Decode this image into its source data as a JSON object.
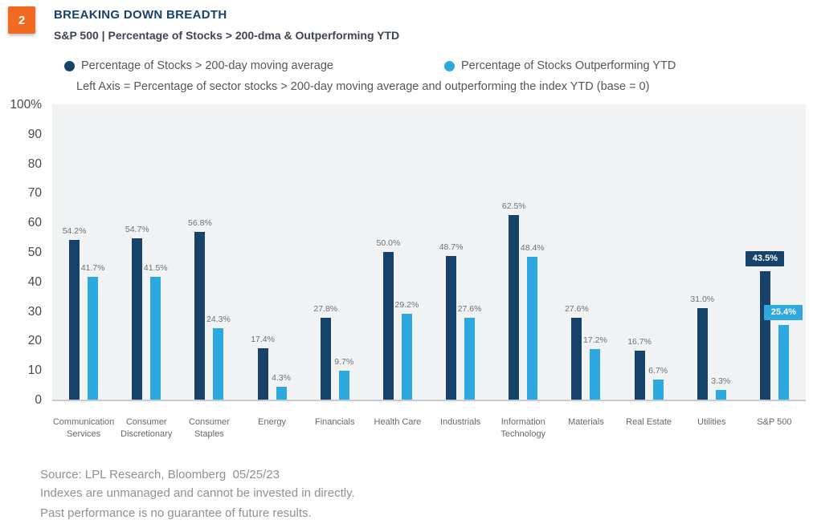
{
  "page": {
    "badge": "2",
    "title": "BREAKING DOWN BREADTH",
    "subtitle": "S&P 500 | Percentage of Stocks > 200-dma & Outperforming YTD"
  },
  "legend": {
    "series1_label": "Percentage of Stocks > 200-day moving average",
    "series2_label": "Percentage of Stocks Outperforming YTD",
    "note": "Left Axis = Percentage of sector stocks > 200-day moving average and outperforming the index YTD (base = 0)"
  },
  "colors": {
    "navy": "#17436B",
    "light_blue": "#2FA8E0",
    "orange": "#F16A21",
    "plot_background": "#F1F2F4"
  },
  "chart_data": {
    "type": "bar",
    "title": "S&P 500 | Percentage of Stocks > 200-dma & Outperforming YTD",
    "categories": [
      "Communication Services",
      "Consumer Discretionary",
      "Consumer Staples",
      "Energy",
      "Financials",
      "Health Care",
      "Industrials",
      "Information Technology",
      "Materials",
      "Real Estate",
      "Utilities",
      "S&P 500"
    ],
    "series": [
      {
        "name": "Percentage of Stocks > 200-day moving average",
        "color": "#17436B",
        "values": [
          54.2,
          54.7,
          56.8,
          17.4,
          27.8,
          50.0,
          48.7,
          62.5,
          27.6,
          16.7,
          31.0,
          43.5
        ]
      },
      {
        "name": "Percentage of Stocks Outperforming YTD",
        "color": "#2FA8E0",
        "values": [
          41.7,
          41.5,
          24.3,
          4.3,
          9.7,
          29.2,
          27.6,
          48.4,
          17.2,
          6.7,
          3.3,
          25.4
        ]
      }
    ],
    "value_label_suffix": "%",
    "y_ticks": [
      "100%",
      "90",
      "80",
      "70",
      "60",
      "50",
      "40",
      "30",
      "20",
      "10",
      "0"
    ],
    "ylim": [
      0,
      100
    ],
    "grid": false,
    "legend_position": "top",
    "highlight_category": "S&P 500"
  },
  "footer": {
    "line1": "Source: LPL Research, Bloomberg  05/25/23",
    "line2": "Indexes are unmanaged and cannot be invested in directly.",
    "line3": "Past performance is no guarantee of future results."
  }
}
